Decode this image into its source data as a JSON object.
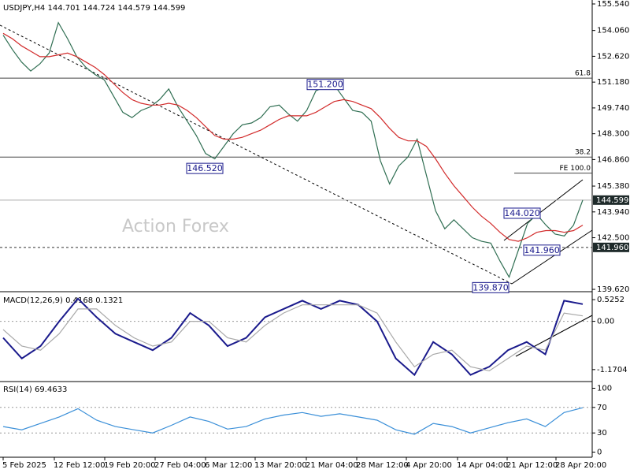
{
  "watermark": "Action Forex",
  "x_labels": [
    "5 Feb 2025",
    "12 Feb 12:00",
    "19 Feb 20:00",
    "27 Feb 04:00",
    "6 Mar 12:00",
    "13 Mar 20:00",
    "21 Mar 04:00",
    "28 Mar 12:00",
    "4 Apr 20:00",
    "14 Apr 04:00",
    "21 Apr 12:00",
    "28 Apr 20:00"
  ],
  "chart_data": [
    {
      "type": "line",
      "title": "USDJPY,H4  144.701 144.724 144.579 144.599",
      "ylim": [
        139.49,
        155.76
      ],
      "yticks": [
        {
          "value": 155.54,
          "label": "155.540"
        },
        {
          "value": 154.06,
          "label": "154.060"
        },
        {
          "value": 152.62,
          "label": "152.620"
        },
        {
          "value": 151.18,
          "label": "151.180"
        },
        {
          "value": 149.74,
          "label": "149.740"
        },
        {
          "value": 148.3,
          "label": "148.300"
        },
        {
          "value": 146.86,
          "label": "146.860"
        },
        {
          "value": 145.38,
          "label": "145.380"
        },
        {
          "value": 143.94,
          "label": "143.940"
        },
        {
          "value": 142.5,
          "label": "142.500"
        },
        {
          "value": 139.62,
          "label": "139.620"
        }
      ],
      "series": [
        {
          "name": "USDJPY",
          "color": "#2f6e52",
          "values": [
            153.8,
            153.0,
            152.3,
            151.8,
            152.2,
            152.8,
            154.5,
            153.6,
            152.6,
            152.0,
            151.6,
            151.3,
            150.4,
            149.5,
            149.2,
            149.6,
            149.8,
            150.2,
            150.8,
            149.8,
            149.0,
            148.2,
            147.2,
            146.9,
            147.6,
            148.3,
            148.8,
            148.9,
            149.2,
            149.8,
            149.9,
            149.4,
            149.0,
            149.6,
            150.7,
            150.9,
            151.0,
            150.3,
            149.6,
            149.5,
            149.0,
            146.8,
            145.5,
            146.5,
            147.0,
            148.0,
            146.0,
            144.0,
            143.0,
            143.5,
            143.0,
            142.5,
            142.3,
            142.2,
            141.2,
            140.3,
            141.8,
            143.3,
            143.8,
            143.2,
            142.7,
            142.6,
            143.2,
            144.6
          ]
        },
        {
          "name": "MA",
          "color": "#d22b2b",
          "values": [
            153.9,
            153.6,
            153.2,
            152.9,
            152.6,
            152.6,
            152.7,
            152.8,
            152.6,
            152.3,
            152.0,
            151.6,
            151.1,
            150.6,
            150.2,
            150.0,
            149.9,
            149.9,
            150.0,
            149.9,
            149.6,
            149.2,
            148.7,
            148.2,
            148.0,
            148.0,
            148.1,
            148.3,
            148.5,
            148.8,
            149.1,
            149.3,
            149.3,
            149.3,
            149.5,
            149.8,
            150.1,
            150.2,
            150.1,
            149.9,
            149.7,
            149.2,
            148.6,
            148.1,
            147.9,
            147.9,
            147.6,
            146.9,
            146.1,
            145.4,
            144.8,
            144.2,
            143.7,
            143.3,
            142.8,
            142.4,
            142.3,
            142.5,
            142.8,
            142.9,
            142.9,
            142.8,
            142.9,
            143.2
          ]
        }
      ],
      "levels": [
        {
          "value": 151.4,
          "label": "61.8"
        },
        {
          "value": 147.0,
          "label": "38.2"
        },
        {
          "value": 146.1,
          "label": "FE 100.0"
        }
      ],
      "hlines": [
        {
          "value": 144.599,
          "label": "144.599"
        },
        {
          "value": 141.96,
          "label": "141.960"
        }
      ],
      "points": [
        {
          "value": 151.2,
          "label": "151.200"
        },
        {
          "value": 146.52,
          "label": "146.520"
        },
        {
          "value": 144.02,
          "label": "144.020"
        },
        {
          "value": 141.96,
          "label": "141.960"
        },
        {
          "value": 139.87,
          "label": "139.870"
        }
      ]
    },
    {
      "type": "line",
      "title": "MACD(12,26,9) 0.4168 0.1321",
      "ylim": [
        -1.46,
        0.68
      ],
      "yticks": [
        0.5252,
        {
          "value": 0,
          "label": "0.00"
        },
        -1.1704
      ],
      "series": [
        {
          "name": "MACD",
          "color": "#1a1a8c",
          "values": [
            -0.4,
            -0.9,
            -0.6,
            0.0,
            0.55,
            0.1,
            -0.3,
            -0.5,
            -0.7,
            -0.4,
            0.2,
            -0.1,
            -0.6,
            -0.4,
            0.1,
            0.3,
            0.5,
            0.3,
            0.5,
            0.4,
            0.0,
            -0.9,
            -1.3,
            -0.5,
            -0.8,
            -1.3,
            -1.1,
            -0.7,
            -0.5,
            -0.8,
            0.5,
            0.4168
          ]
        },
        {
          "name": "Signal",
          "color": "#a8a8a8",
          "values": [
            -0.2,
            -0.6,
            -0.7,
            -0.3,
            0.3,
            0.3,
            -0.1,
            -0.4,
            -0.6,
            -0.5,
            0.0,
            0.0,
            -0.4,
            -0.5,
            -0.1,
            0.2,
            0.4,
            0.4,
            0.4,
            0.4,
            0.2,
            -0.5,
            -1.1,
            -0.8,
            -0.7,
            -1.1,
            -1.2,
            -0.9,
            -0.6,
            -0.7,
            0.2,
            0.1321
          ]
        }
      ]
    },
    {
      "type": "line",
      "title": "RSI(14) 69.4633",
      "ylim": [
        -8,
        108
      ],
      "yticks": [
        100,
        70,
        30,
        0
      ],
      "series": [
        {
          "name": "RSI",
          "color": "#3a8fd8",
          "values": [
            40,
            35,
            45,
            55,
            68,
            50,
            40,
            35,
            30,
            42,
            55,
            48,
            36,
            40,
            52,
            58,
            62,
            56,
            60,
            55,
            50,
            35,
            28,
            45,
            40,
            30,
            38,
            46,
            52,
            40,
            62,
            69.4633
          ]
        }
      ]
    }
  ]
}
